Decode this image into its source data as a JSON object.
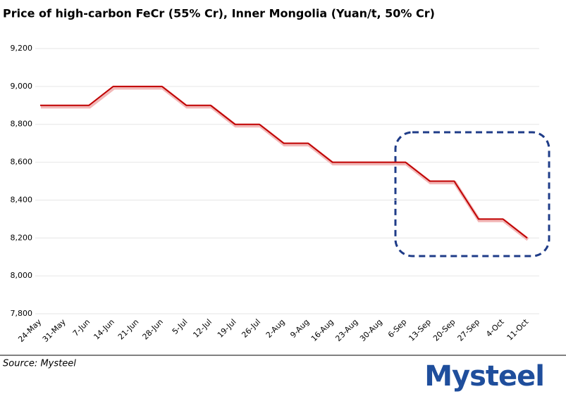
{
  "chart_data": {
    "type": "line",
    "title": "Price of high-carbon FeCr (55% Cr), Inner Mongolia (Yuan/t, 50% Cr)",
    "categories": [
      "24-May",
      "31-May",
      "7-Jun",
      "14-Jun",
      "21-Jun",
      "28-Jun",
      "5-Jul",
      "12-Jul",
      "19-Jul",
      "26-Jul",
      "2-Aug",
      "9-Aug",
      "16-Aug",
      "23-Aug",
      "30-Aug",
      "6-Sep",
      "13-Sep",
      "20-Sep",
      "27-Sep",
      "4-Oct",
      "11-Oct"
    ],
    "series": [
      {
        "name": "High-carbon FeCr",
        "color": "#c00000",
        "values": [
          8900,
          8900,
          8900,
          9000,
          9000,
          9000,
          8900,
          8900,
          8800,
          8800,
          8700,
          8700,
          8600,
          8600,
          8600,
          8600,
          8500,
          8500,
          8300,
          8300,
          8200
        ]
      }
    ],
    "ylim": [
      7800,
      9200
    ],
    "yticks": [
      {
        "value": 7800,
        "label": "7,800"
      },
      {
        "value": 8000,
        "label": "8,000"
      },
      {
        "value": 8200,
        "label": "8,200"
      },
      {
        "value": 8400,
        "label": "8,400"
      },
      {
        "value": 8600,
        "label": "8,600"
      },
      {
        "value": 8800,
        "label": "8,800"
      },
      {
        "value": 9000,
        "label": "9,000"
      },
      {
        "value": 9200,
        "label": "9,200"
      }
    ],
    "grid": true,
    "source": "Source:  Mysteel",
    "logo": "Mysteel"
  }
}
